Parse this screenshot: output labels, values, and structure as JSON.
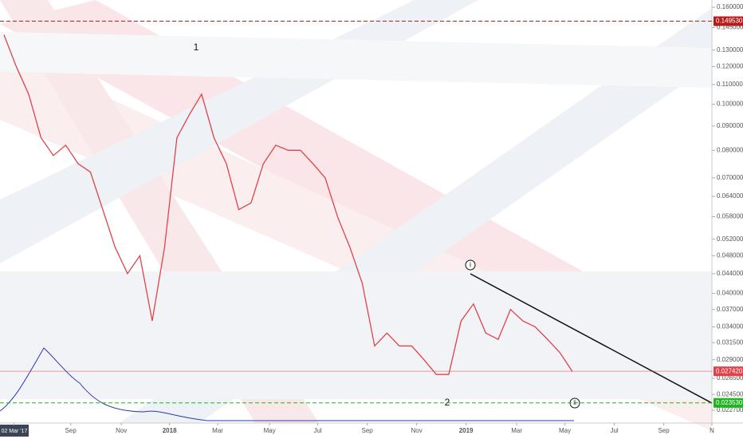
{
  "chart_data": {
    "type": "line",
    "series": [
      {
        "name": null,
        "color": "#e0424a",
        "values": [
          0.14,
          0.12,
          0.105,
          0.085,
          0.078,
          0.082,
          0.075,
          0.072,
          0.06,
          0.05,
          0.044,
          0.048,
          0.035,
          0.05,
          0.085,
          0.095,
          0.105,
          0.085,
          0.075,
          0.06,
          0.062,
          0.075,
          0.082,
          0.08,
          0.08,
          0.075,
          0.07,
          0.058,
          0.05,
          0.042,
          0.031,
          0.033,
          0.031,
          0.031,
          0.029,
          0.027,
          0.027,
          0.035,
          0.038,
          0.033,
          0.032,
          0.037,
          0.035,
          0.034,
          0.032,
          0.03,
          0.0274
        ]
      }
    ],
    "ylim": [
      0.1657,
      0.02134
    ],
    "log_scale": true,
    "yticks": [
      {
        "value": 0.16,
        "label": "0.160000"
      },
      {
        "value": 0.145,
        "label": "0.145000"
      },
      {
        "value": 0.13,
        "label": "0.130000"
      },
      {
        "value": 0.12,
        "label": "0.120000"
      },
      {
        "value": 0.11,
        "label": "0.110000"
      },
      {
        "value": 0.1,
        "label": "0.100000"
      },
      {
        "value": 0.09,
        "label": "0.090000"
      },
      {
        "value": 0.08,
        "label": "0.080000"
      },
      {
        "value": 0.07,
        "label": "0.070000"
      },
      {
        "value": 0.064,
        "label": "0.064000"
      },
      {
        "value": 0.058,
        "label": "0.058000"
      },
      {
        "value": 0.052,
        "label": "0.052000"
      },
      {
        "value": 0.048,
        "label": "0.048000"
      },
      {
        "value": 0.044,
        "label": "0.044000"
      },
      {
        "value": 0.04,
        "label": "0.040000"
      },
      {
        "value": 0.037,
        "label": "0.037000"
      },
      {
        "value": 0.034,
        "label": "0.034000"
      },
      {
        "value": 0.0315,
        "label": "0.031500"
      },
      {
        "value": 0.029,
        "label": "0.029000"
      },
      {
        "value": 0.0265,
        "label": "0.026500"
      },
      {
        "value": 0.0245,
        "label": "0.024500"
      },
      {
        "value": 0.0227,
        "label": "0.022700"
      }
    ],
    "xlim": [
      -0.32,
      57.3
    ],
    "xticks": [
      {
        "value": 0.8,
        "label": "02 Mar '17"
      },
      {
        "value": 5.4,
        "label": "Sep"
      },
      {
        "value": 9.5,
        "label": "Nov"
      },
      {
        "value": 13.4,
        "label": "2018"
      },
      {
        "value": 17.3,
        "label": "Mar"
      },
      {
        "value": 21.5,
        "label": "May"
      },
      {
        "value": 25.4,
        "label": "Jul"
      },
      {
        "value": 29.4,
        "label": "Sep"
      },
      {
        "value": 33.4,
        "label": "Nov"
      },
      {
        "value": 37.4,
        "label": "2019"
      },
      {
        "value": 41.5,
        "label": "Mar"
      },
      {
        "value": 45.4,
        "label": "May"
      },
      {
        "value": 49.4,
        "label": "Jul"
      },
      {
        "value": 53.4,
        "label": "Sep"
      },
      {
        "value": 57.3,
        "label": "N"
      }
    ],
    "levels": [
      {
        "value": 0.14953,
        "label": "0.149530",
        "color": "#b71c1c"
      },
      {
        "value": 0.02742,
        "label": "0.027420",
        "color": "#e0424a"
      },
      {
        "value": 0.02353,
        "label": "0.023530",
        "color": "#1fb51f"
      }
    ],
    "annotations": [
      "1",
      "2",
      "i",
      "ii"
    ]
  }
}
